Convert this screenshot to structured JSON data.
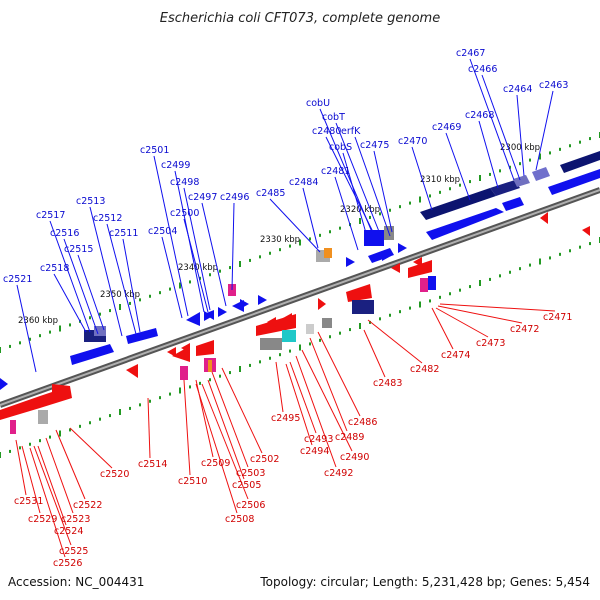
{
  "title": "Escherichia coli CFT073, complete genome",
  "footer": {
    "accession": "Accession: NC_004431",
    "summary": "Topology: circular; Length: 5,231,428 bp; Genes: 5,454"
  },
  "colors": {
    "forward": "#1010ee",
    "reverse": "#ee1010",
    "backbone": "#8a8a8a",
    "tick": "#229922"
  },
  "scale_labels": [
    "2300 kbp",
    "2310 kbp",
    "2320 kbp",
    "2330 kbp",
    "2340 kbp",
    "2350 kbp",
    "2360 kbp"
  ],
  "top_labels": [
    "c2467",
    "c2466",
    "c2464",
    "c2463",
    "cobU",
    "c2468",
    "cobT",
    "c2469",
    "c2480",
    "erfK",
    "c2470",
    "c2475",
    "cobS",
    "c2481",
    "c2501",
    "c2499",
    "c2484",
    "c2498",
    "c2497",
    "c2496",
    "c2485",
    "c2513",
    "c2500",
    "c2517",
    "c2512",
    "c2504",
    "c2516",
    "c2511",
    "c2515",
    "c2518",
    "c2521"
  ],
  "bottom_labels": [
    "c2471",
    "c2472",
    "c2473",
    "c2474",
    "c2482",
    "c2483",
    "c2486",
    "c2495",
    "c2489",
    "c2493",
    "c2494",
    "c2490",
    "c2492",
    "c2502",
    "c2503",
    "c2509",
    "c2505",
    "c2506",
    "c2508",
    "c2510",
    "c2514",
    "c2520",
    "c2531",
    "c2522",
    "c2523",
    "c2529",
    "c2524",
    "c2525",
    "c2526"
  ]
}
